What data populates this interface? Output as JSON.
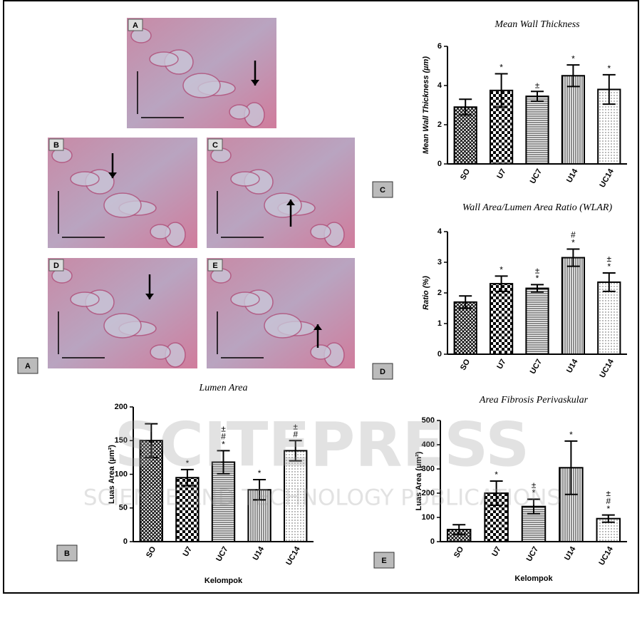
{
  "watermark": {
    "main": "SCITEPRESS",
    "sub": "SCIENCE AND TECHNOLOGY PUBLICATIONS"
  },
  "micrographs": {
    "group_label": "A",
    "images": [
      {
        "label": "A"
      },
      {
        "label": "B"
      },
      {
        "label": "C"
      },
      {
        "label": "D"
      },
      {
        "label": "E"
      }
    ]
  },
  "chart_data": [
    {
      "type": "bar",
      "title": "Mean Wall Thickness",
      "panel": "C",
      "ylabel": "Mean Wall Thickness (µm)",
      "categories": [
        "SO",
        "U7",
        "UC7",
        "U14",
        "UC14"
      ],
      "values": [
        2.9,
        3.75,
        3.45,
        4.5,
        3.8
      ],
      "errors": [
        0.4,
        0.85,
        0.25,
        0.55,
        0.75
      ],
      "annotations": [
        null,
        [
          "*"
        ],
        [
          "±"
        ],
        [
          "*"
        ],
        [
          "*"
        ]
      ],
      "patterns": [
        "crosshatch",
        "checker",
        "hlines",
        "vlines",
        "dots"
      ],
      "color": "#000000",
      "ylim": [
        0,
        6
      ],
      "yticks": [
        0,
        2,
        4,
        6
      ]
    },
    {
      "type": "bar",
      "title": "Wall Area/Lumen Area Ratio (WLAR)",
      "panel": "D",
      "ylabel": "Ratio (%)",
      "categories": [
        "SO",
        "U7",
        "UC7",
        "U14",
        "UC14"
      ],
      "values": [
        1.7,
        2.3,
        2.15,
        3.15,
        2.35
      ],
      "errors": [
        0.2,
        0.25,
        0.12,
        0.28,
        0.3
      ],
      "annotations": [
        null,
        [
          "*"
        ],
        [
          "±",
          "*"
        ],
        [
          "#",
          "*"
        ],
        [
          "±",
          "*"
        ]
      ],
      "patterns": [
        "crosshatch",
        "checker",
        "hlines",
        "vlines",
        "dots"
      ],
      "color": "#000000",
      "ylim": [
        0,
        4
      ],
      "yticks": [
        0,
        1,
        2,
        3,
        4
      ]
    },
    {
      "type": "bar",
      "title": "Lumen Area",
      "panel": "B",
      "ylabel": "Luas Area (µm²)",
      "xlabel": "Kelompok",
      "categories": [
        "SO",
        "U7",
        "UC7",
        "U14",
        "UC14"
      ],
      "values": [
        150,
        95,
        118,
        77,
        135
      ],
      "errors": [
        25,
        12,
        17,
        15,
        15
      ],
      "annotations": [
        null,
        [
          "*"
        ],
        [
          "±",
          "#",
          "*"
        ],
        [
          "*"
        ],
        [
          "±",
          "#"
        ]
      ],
      "patterns": [
        "crosshatch",
        "checker",
        "hlines",
        "vlines",
        "dots"
      ],
      "color": "#000000",
      "ylim": [
        0,
        200
      ],
      "yticks": [
        0,
        50,
        100,
        150,
        200
      ]
    },
    {
      "type": "bar",
      "title": "Area Fibrosis Perivaskular",
      "panel": "E",
      "ylabel": "Luas Area (µm²)",
      "xlabel": "Kelompok",
      "categories": [
        "SO",
        "U7",
        "UC7",
        "U14",
        "UC14"
      ],
      "values": [
        50,
        200,
        145,
        305,
        95
      ],
      "errors": [
        20,
        50,
        30,
        110,
        15
      ],
      "annotations": [
        null,
        [
          "*"
        ],
        [
          "±",
          "*"
        ],
        [
          "*"
        ],
        [
          "±",
          "#",
          "*"
        ]
      ],
      "patterns": [
        "crosshatch",
        "checker",
        "hlines",
        "vlines",
        "dots"
      ],
      "color": "#000000",
      "ylim": [
        0,
        500
      ],
      "yticks": [
        0,
        100,
        200,
        300,
        400,
        500
      ]
    }
  ]
}
